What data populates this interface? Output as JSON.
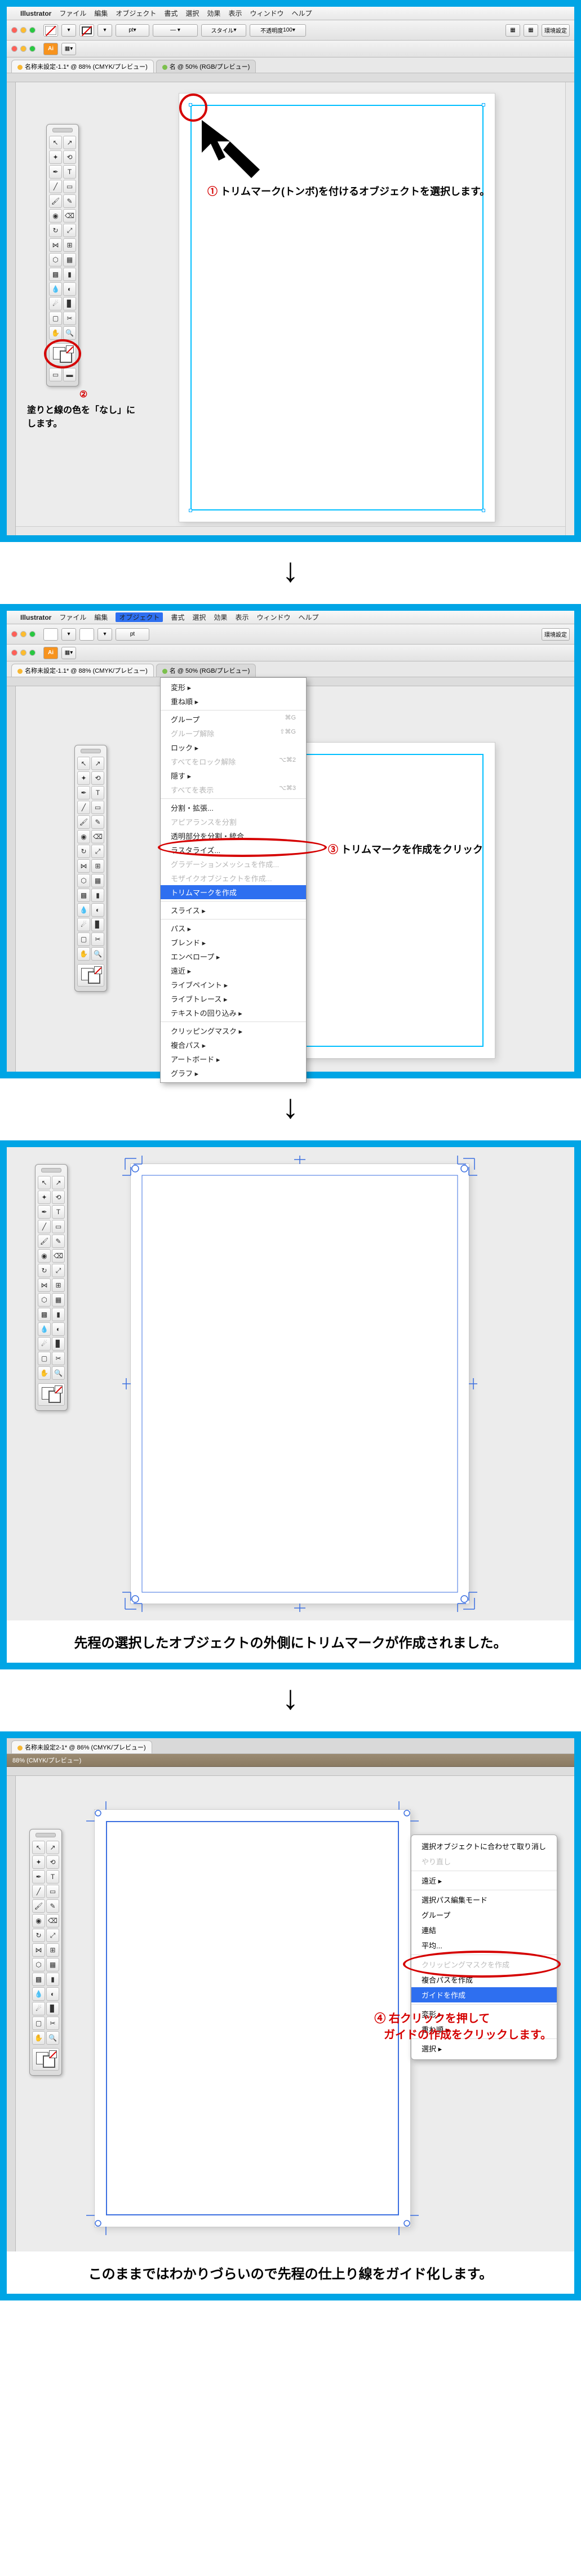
{
  "menubar": {
    "apple": "",
    "app": "Illustrator",
    "items": [
      "ファイル",
      "編集",
      "オブジェクト",
      "書式",
      "選択",
      "効果",
      "表示",
      "ウィンドウ",
      "ヘルプ"
    ]
  },
  "toolbar": {
    "nofill": "なし",
    "stroke_pt": "pt",
    "style": "スタイル",
    "opacity": "不透明度",
    "opacity_val": "100",
    "setup": "環境設定"
  },
  "tabs": {
    "tab1": "名称未設定-1.1* @ 88% (CMYK/プレビュー)",
    "tab2": "名 @ 50% (RGB/プレビュー)",
    "tab3": "名称未設定2-1* @ 86% (CMYK/プレビュー)"
  },
  "brownbar": {
    "text1": "88% (CMYK/プレビュー)"
  },
  "step1": {
    "callout1": "トリムマーク(トンボ)を付けるオブジェクトを選択します。",
    "callout2": "塗りと線の色を「なし」にします。"
  },
  "step2": {
    "menu": {
      "items": [
        {
          "l": "変形",
          "s": "",
          "gray": false,
          "arrow": true
        },
        {
          "l": "重ね順",
          "s": "",
          "gray": false,
          "arrow": true
        },
        {
          "l": "グループ",
          "s": "⌘G",
          "gray": false
        },
        {
          "l": "グループ解除",
          "s": "⇧⌘G",
          "gray": true
        },
        {
          "l": "ロック",
          "s": "",
          "gray": false,
          "arrow": true
        },
        {
          "l": "すべてをロック解除",
          "s": "⌥⌘2",
          "gray": true
        },
        {
          "l": "隠す",
          "s": "",
          "gray": false,
          "arrow": true
        },
        {
          "l": "すべてを表示",
          "s": "⌥⌘3",
          "gray": true
        },
        {
          "l": "分割・拡張...",
          "s": "",
          "gray": false
        },
        {
          "l": "アピアランスを分割",
          "s": "",
          "gray": true
        },
        {
          "l": "透明部分を分割・統合...",
          "s": "",
          "gray": false
        },
        {
          "l": "ラスタライズ...",
          "s": "",
          "gray": false
        },
        {
          "l": "グラデーションメッシュを作成...",
          "s": "",
          "gray": true
        },
        {
          "l": "モザイクオブジェクトを作成...",
          "s": "",
          "gray": true
        },
        {
          "l": "トリムマークを作成",
          "s": "",
          "gray": false,
          "sel": true
        },
        {
          "l": "スライス",
          "s": "",
          "gray": false,
          "arrow": true
        },
        {
          "l": "パス",
          "s": "",
          "gray": false,
          "arrow": true
        },
        {
          "l": "ブレンド",
          "s": "",
          "gray": false,
          "arrow": true
        },
        {
          "l": "エンベロープ",
          "s": "",
          "gray": false,
          "arrow": true
        },
        {
          "l": "遠近",
          "s": "",
          "gray": false,
          "arrow": true
        },
        {
          "l": "ライブペイント",
          "s": "",
          "gray": false,
          "arrow": true
        },
        {
          "l": "ライブトレース",
          "s": "",
          "gray": false,
          "arrow": true
        },
        {
          "l": "テキストの回り込み",
          "s": "",
          "gray": false,
          "arrow": true
        },
        {
          "l": "クリッピングマスク",
          "s": "",
          "gray": false,
          "arrow": true
        },
        {
          "l": "複合パス",
          "s": "",
          "gray": false,
          "arrow": true
        },
        {
          "l": "アートボード",
          "s": "",
          "gray": false,
          "arrow": true
        },
        {
          "l": "グラフ",
          "s": "",
          "gray": false,
          "arrow": true
        }
      ]
    },
    "callout": "トリムマークを作成をクリック"
  },
  "step3": {
    "caption": "先程の選択したオブジェクトの外側にトリムマークが作成されました。"
  },
  "step4": {
    "ctx": [
      {
        "l": "選択オブジェクトに合わせて取り消し",
        "gray": false
      },
      {
        "l": "やり直し",
        "gray": true
      },
      {
        "l": "遠近",
        "gray": false,
        "arrow": true
      },
      {
        "l": "選択パス編集モード",
        "gray": false
      },
      {
        "l": "グループ",
        "gray": false
      },
      {
        "l": "連結",
        "gray": false
      },
      {
        "l": "平均...",
        "gray": false
      },
      {
        "l": "クリッピングマスクを作成",
        "gray": true
      },
      {
        "l": "複合パスを作成",
        "gray": false
      },
      {
        "l": "ガイドを作成",
        "gray": false,
        "sel": true
      },
      {
        "l": "変形",
        "gray": false,
        "arrow": true
      },
      {
        "l": "重ね順",
        "gray": false,
        "arrow": true
      },
      {
        "l": "選択",
        "gray": false,
        "arrow": true
      }
    ],
    "callout_a": "右クリックを押して",
    "callout_b": "ガイドの作成をクリックします。",
    "caption": "このままではわかりづらいので先程の仕上り線をガイド化します。"
  },
  "nums": {
    "n1": "①",
    "n2": "②",
    "n3": "③",
    "n4": "④"
  }
}
